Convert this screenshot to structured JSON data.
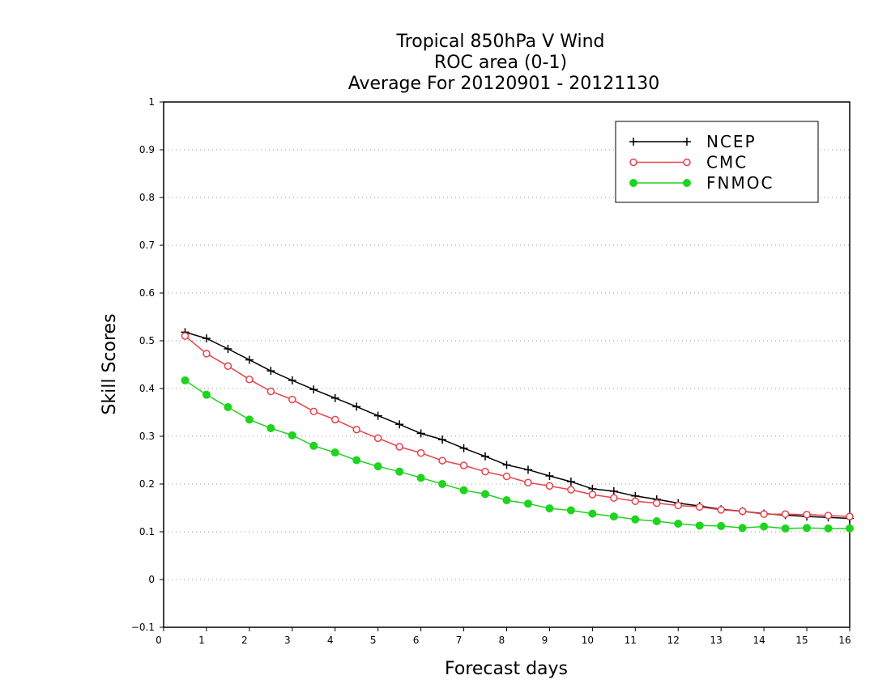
{
  "chart_data": {
    "type": "line",
    "title_lines": [
      "Tropical 850hPa V Wind",
      "ROC area (0-1)",
      "Average For 20120901 - 20121130"
    ],
    "xlabel": "Forecast days",
    "ylabel": "Skill Scores",
    "xlim": [
      0,
      16
    ],
    "ylim": [
      -0.1,
      1
    ],
    "xticks": [
      "0",
      "1",
      "2",
      "3",
      "4",
      "5",
      "6",
      "7",
      "8",
      "9",
      "10",
      "11",
      "12",
      "13",
      "14",
      "15",
      "16"
    ],
    "yticks": [
      "−0.1",
      "0",
      "0.1",
      "0.2",
      "0.3",
      "0.4",
      "0.5",
      "0.6",
      "0.7",
      "0.8",
      "0.9",
      "1"
    ],
    "grid": true,
    "legend_position": "top-right",
    "x": [
      0.5,
      1,
      1.5,
      2,
      2.5,
      3,
      3.5,
      4,
      4.5,
      5,
      5.5,
      6,
      6.5,
      7,
      7.5,
      8,
      8.5,
      9,
      9.5,
      10,
      10.5,
      11,
      11.5,
      12,
      12.5,
      13,
      13.5,
      14,
      14.5,
      15,
      15.5,
      16
    ],
    "series": [
      {
        "name": "NCEP",
        "color": "#000000",
        "marker": "plus",
        "values": [
          0.518,
          0.505,
          0.483,
          0.46,
          0.437,
          0.417,
          0.398,
          0.38,
          0.362,
          0.343,
          0.325,
          0.306,
          0.293,
          0.275,
          0.258,
          0.24,
          0.23,
          0.217,
          0.205,
          0.19,
          0.185,
          0.175,
          0.168,
          0.16,
          0.154,
          0.147,
          0.143,
          0.138,
          0.135,
          0.132,
          0.13,
          0.128
        ]
      },
      {
        "name": "CMC",
        "color": "#e8414a",
        "marker": "open-circle",
        "values": [
          0.51,
          0.473,
          0.447,
          0.419,
          0.394,
          0.377,
          0.352,
          0.335,
          0.314,
          0.296,
          0.278,
          0.265,
          0.249,
          0.239,
          0.226,
          0.216,
          0.203,
          0.196,
          0.188,
          0.178,
          0.171,
          0.164,
          0.16,
          0.155,
          0.152,
          0.146,
          0.143,
          0.137,
          0.137,
          0.136,
          0.134,
          0.132
        ]
      },
      {
        "name": "FNMOC",
        "color": "#1fd31f",
        "marker": "filled-circle",
        "values": [
          0.417,
          0.387,
          0.361,
          0.335,
          0.317,
          0.302,
          0.28,
          0.266,
          0.25,
          0.237,
          0.226,
          0.213,
          0.2,
          0.187,
          0.179,
          0.166,
          0.159,
          0.149,
          0.145,
          0.138,
          0.132,
          0.126,
          0.122,
          0.117,
          0.113,
          0.112,
          0.108,
          0.111,
          0.107,
          0.108,
          0.107,
          0.107
        ]
      }
    ]
  }
}
